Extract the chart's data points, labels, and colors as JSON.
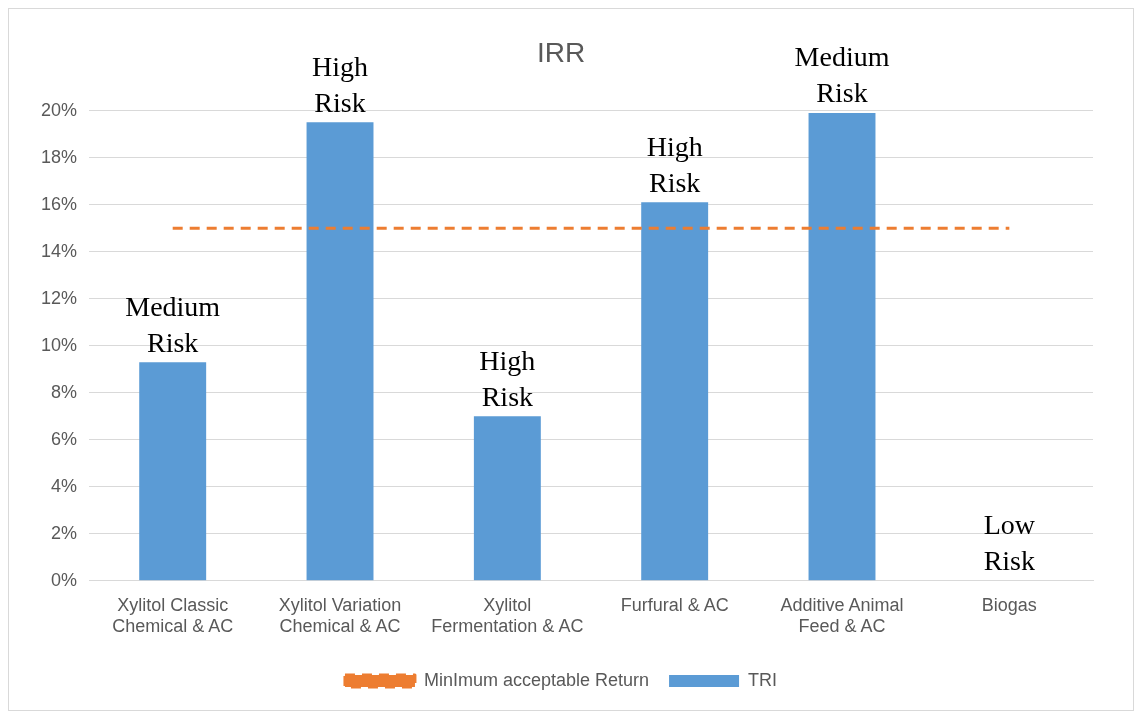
{
  "chart_data": {
    "type": "bar",
    "title": "IRR",
    "categories": [
      "Xylitol Classic Chemical & AC",
      "Xylitol Variation Chemical & AC",
      "Xylitol Fermentation & AC",
      "Furfural & AC",
      "Additive Animal Feed & AC",
      "Biogas"
    ],
    "series": [
      {
        "name": "TRI",
        "color": "#5b9bd5",
        "values": [
          9.3,
          19.5,
          7.0,
          16.1,
          19.9,
          0
        ]
      },
      {
        "name": "MinImum acceptable Return",
        "type": "line",
        "color": "#ed7d31",
        "line_style": "dashed",
        "marker": "none",
        "values": [
          15,
          15,
          15,
          15,
          15,
          15
        ]
      }
    ],
    "ylim": [
      0,
      20
    ],
    "yticks": [
      {
        "value": 0,
        "label": "0%"
      },
      {
        "value": 2,
        "label": "2%"
      },
      {
        "value": 4,
        "label": "4%"
      },
      {
        "value": 6,
        "label": "6%"
      },
      {
        "value": 8,
        "label": "8%"
      },
      {
        "value": 10,
        "label": "10%"
      },
      {
        "value": 12,
        "label": "12%"
      },
      {
        "value": 14,
        "label": "14%"
      },
      {
        "value": 16,
        "label": "16%"
      },
      {
        "value": 18,
        "label": "18%"
      },
      {
        "value": 20,
        "label": "20%"
      }
    ],
    "grid": "y",
    "legend": "bottom",
    "annotations": [
      {
        "text": "Medium Risk",
        "x": "Xylitol Classic Chemical & AC",
        "y": 9.3
      },
      {
        "text": "High Risk",
        "x": "Xylitol Variation Chemical & AC",
        "y": 19.5
      },
      {
        "text": "High Risk",
        "x": "Xylitol Fermentation & AC",
        "y": 7.0
      },
      {
        "text": "High Risk",
        "x": "Furfural & AC",
        "y": 16.1
      },
      {
        "text": "Medium Risk",
        "x": "Additive Animal Feed & AC",
        "y": 19.9
      },
      {
        "text": "Low Risk",
        "x": "Biogas",
        "y": 0
      }
    ]
  }
}
